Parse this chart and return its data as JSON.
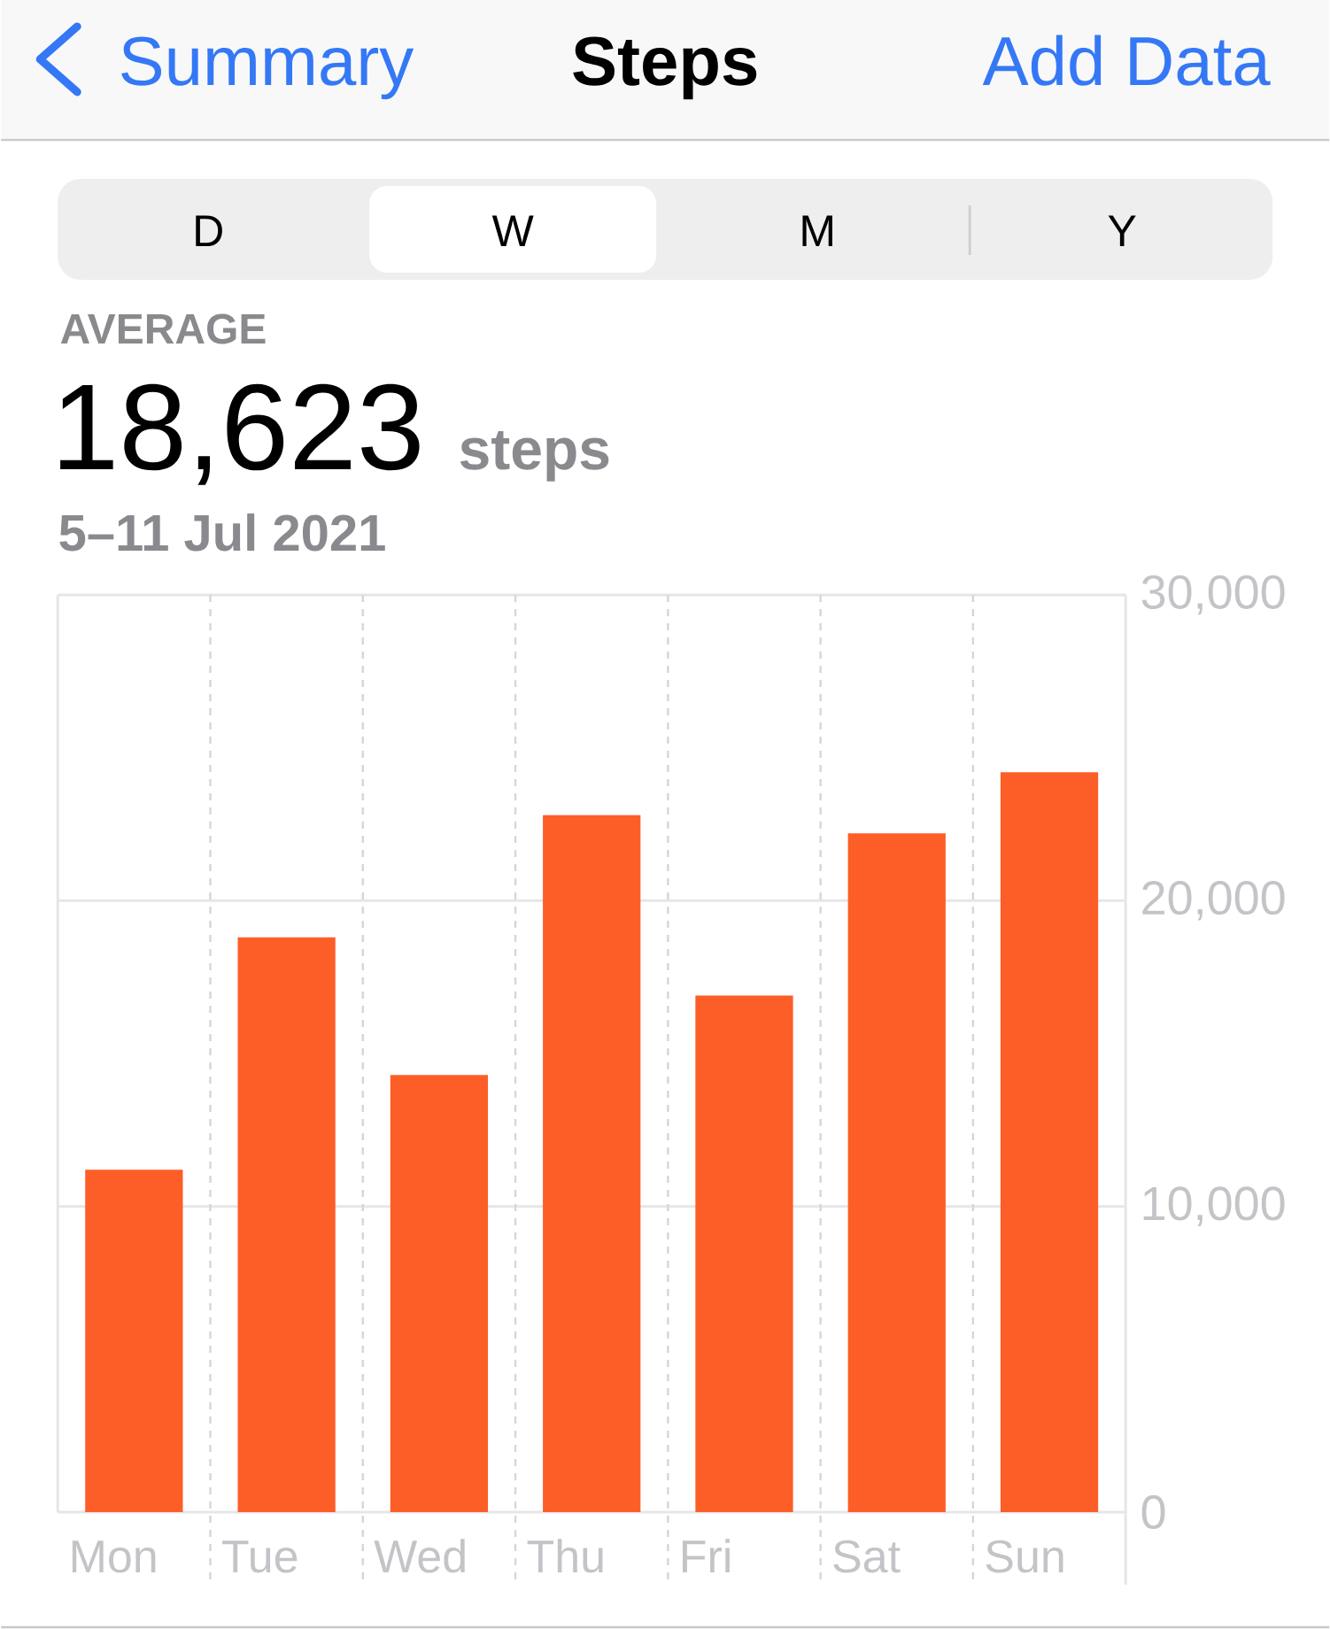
{
  "chart_data": {
    "type": "bar",
    "title": "Steps",
    "subtitle": "5–11 Jul 2021",
    "annotations": [
      "Summary",
      "Add Data",
      "D",
      "W",
      "M",
      "Y",
      "AVERAGE",
      "18,623",
      "steps"
    ],
    "categories": [
      "Mon",
      "Tue",
      "Wed",
      "Thu",
      "Fri",
      "Sat",
      "Sun"
    ],
    "values": [
      11200,
      18800,
      14300,
      22800,
      16900,
      22200,
      24200
    ],
    "color": "#fd5e27",
    "ylim": [
      0,
      30000
    ],
    "yticks": [
      0,
      {
        "value": 10000,
        "label": "10,000"
      },
      {
        "value": 20000,
        "label": "20,000"
      },
      {
        "value": 30000,
        "label": "30,000"
      }
    ],
    "grid": true
  }
}
